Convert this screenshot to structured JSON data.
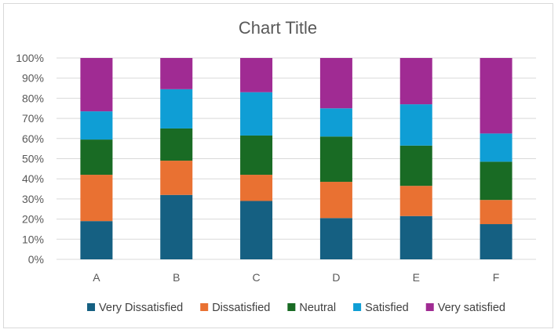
{
  "chart_data": {
    "type": "bar",
    "stacked": true,
    "percent_stacked": true,
    "title": "Chart Title",
    "xlabel": "",
    "ylabel": "",
    "ylim": [
      0,
      100
    ],
    "yticks": [
      "0%",
      "10%",
      "20%",
      "30%",
      "40%",
      "50%",
      "60%",
      "70%",
      "80%",
      "90%",
      "100%"
    ],
    "categories": [
      "A",
      "B",
      "C",
      "D",
      "E",
      "F"
    ],
    "grid": true,
    "legend_position": "bottom",
    "series": [
      {
        "name": "Very Dissatisfied",
        "color": "#156082",
        "values": [
          19,
          32,
          29,
          20.5,
          21.5,
          17.5
        ]
      },
      {
        "name": "Dissatisfied",
        "color": "#E97132",
        "values": [
          23,
          17,
          13,
          18,
          15,
          12
        ]
      },
      {
        "name": "Neutral",
        "color": "#196B24",
        "values": [
          17.5,
          16,
          19.5,
          22.5,
          20,
          19
        ]
      },
      {
        "name": "Satisfied",
        "color": "#0F9ED5",
        "values": [
          14,
          19.5,
          21.5,
          14,
          20.5,
          14
        ]
      },
      {
        "name": "Very satisfied",
        "color": "#A02B93",
        "values": [
          26.5,
          15.5,
          17,
          25,
          23,
          37.5
        ]
      }
    ]
  }
}
